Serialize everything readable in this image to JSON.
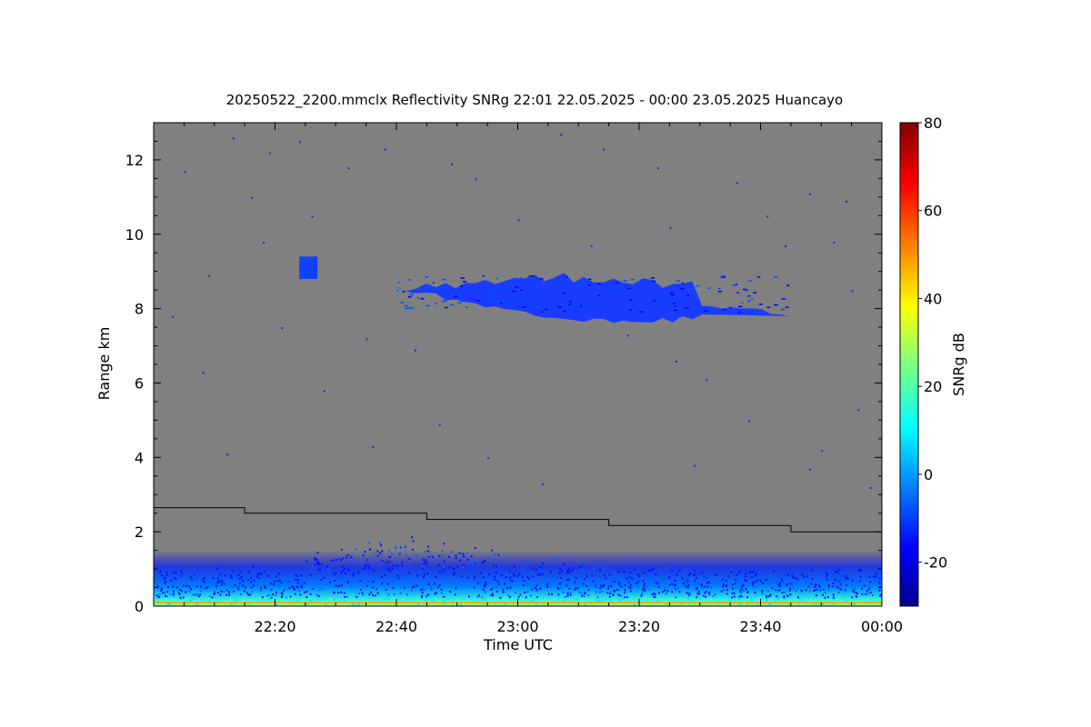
{
  "chart_data": {
    "type": "heatmap",
    "title": "20250522_2200.mmclx Reflectivity SNRg   22:01 22.05.2025 - 00:00 23.05.2025 Huancayo",
    "xlabel": "Time UTC",
    "ylabel": "Range km",
    "colorbar_label": "SNRg dB",
    "x_range_minutes": [
      0,
      120
    ],
    "x_ticks": [
      {
        "minute": 20,
        "label": "22:20"
      },
      {
        "minute": 40,
        "label": "22:40"
      },
      {
        "minute": 60,
        "label": "23:00"
      },
      {
        "minute": 80,
        "label": "23:20"
      },
      {
        "minute": 100,
        "label": "23:40"
      },
      {
        "minute": 120,
        "label": "00:00"
      }
    ],
    "y_range": [
      0,
      13
    ],
    "y_ticks": [
      0,
      2,
      4,
      6,
      8,
      10,
      12
    ],
    "colorbar_range": [
      -30,
      80
    ],
    "colorbar_ticks": [
      -20,
      0,
      20,
      40,
      60,
      80
    ],
    "colormap": [
      "#00008f",
      "#0000ff",
      "#00ffff",
      "#ffff00",
      "#ff0000",
      "#800000"
    ],
    "background_color": "#808080",
    "boundary_line": [
      {
        "x_start": 0,
        "x_end": 15,
        "y": 2.65
      },
      {
        "x_start": 15,
        "x_end": 45,
        "y": 2.5
      },
      {
        "x_start": 45,
        "x_end": 75,
        "y": 2.33
      },
      {
        "x_start": 75,
        "x_end": 105,
        "y": 2.17
      },
      {
        "x_start": 105,
        "x_end": 120,
        "y": 2.0
      }
    ],
    "cloud_layer": {
      "x_extent": [
        40,
        105
      ],
      "y_extent": [
        7.6,
        9.1
      ],
      "snr_db": -20
    },
    "small_cloud": {
      "x_extent": [
        24,
        27
      ],
      "y_extent": [
        8.8,
        9.4
      ],
      "snr_db": -20
    },
    "boundary_layer": {
      "y_extent": [
        0,
        1.5
      ],
      "snr_db_max": 20
    },
    "noise_specks": [
      [
        5,
        11.7
      ],
      [
        9,
        8.9
      ],
      [
        13,
        12.6
      ],
      [
        16,
        11
      ],
      [
        19,
        12.2
      ],
      [
        24,
        12.5
      ],
      [
        32,
        11.8
      ],
      [
        38,
        12.3
      ],
      [
        49,
        11.9
      ],
      [
        53,
        11.5
      ],
      [
        67,
        12.7
      ],
      [
        74,
        12.3
      ],
      [
        83,
        11.8
      ],
      [
        96,
        11.4
      ],
      [
        108,
        11.1
      ],
      [
        114,
        10.9
      ],
      [
        112,
        9.8
      ],
      [
        115,
        8.5
      ],
      [
        3,
        7.8
      ],
      [
        8,
        6.3
      ],
      [
        12,
        4.1
      ],
      [
        28,
        5.8
      ],
      [
        35,
        7.2
      ],
      [
        47,
        4.9
      ],
      [
        55,
        4.0
      ],
      [
        64,
        3.3
      ],
      [
        78,
        7.3
      ],
      [
        91,
        6.1
      ],
      [
        98,
        5.0
      ],
      [
        108,
        3.7
      ],
      [
        110,
        4.2
      ],
      [
        118,
        3.2
      ],
      [
        60,
        10.4
      ],
      [
        72,
        9.7
      ],
      [
        85,
        10.2
      ],
      [
        101,
        10.5
      ],
      [
        26,
        10.5
      ],
      [
        18,
        9.8
      ],
      [
        43,
        6.9
      ],
      [
        89,
        3.8
      ],
      [
        86,
        6.6
      ],
      [
        104,
        9.7
      ],
      [
        116,
        5.3
      ],
      [
        21,
        7.5
      ],
      [
        36,
        4.3
      ]
    ]
  }
}
